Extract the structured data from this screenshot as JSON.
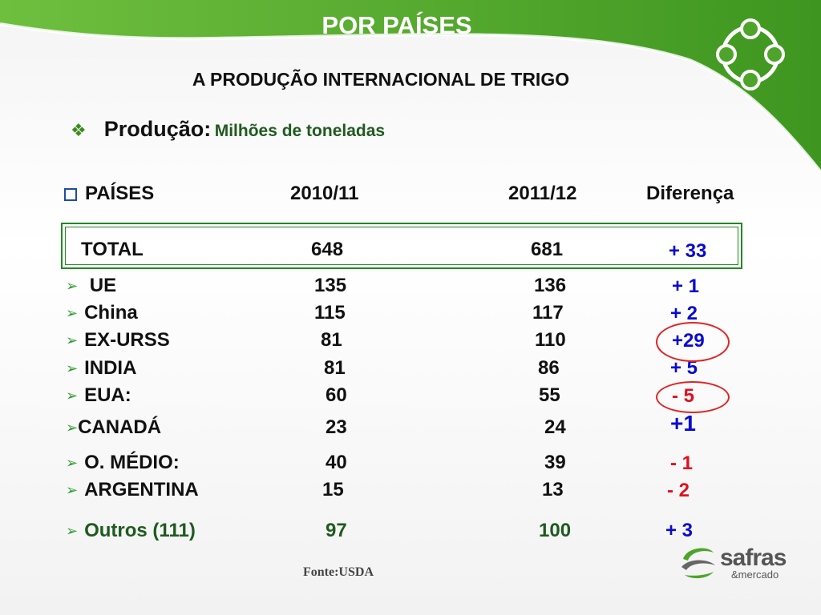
{
  "header": {
    "title": "POR PAÍSES",
    "subtitle": "A PRODUÇÃO INTERNACIONAL DE TRIGO"
  },
  "production": {
    "label": "Produção:",
    "unit": "Milhões de toneladas"
  },
  "table": {
    "columns": [
      "PAÍSES",
      "2010/11",
      "2011/12",
      "Diferença"
    ],
    "total": {
      "country": "TOTAL",
      "y2010": "648",
      "y2011": "681",
      "diff": "+ 33"
    },
    "rows": [
      {
        "country": "UE",
        "y2010": "135",
        "y2011": "136",
        "diff": "+ 1"
      },
      {
        "country": "China",
        "y2010": "115",
        "y2011": "117",
        "diff": "+ 2"
      },
      {
        "country": "EX-URSS",
        "y2010": "81",
        "y2011": "110",
        "diff": "+29"
      },
      {
        "country": "INDIA",
        "y2010": "81",
        "y2011": "86",
        "diff": "+ 5"
      },
      {
        "country": "EUA:",
        "y2010": "60",
        "y2011": "55",
        "diff": "- 5"
      },
      {
        "country": "CANADÁ",
        "y2010": "23",
        "y2011": "24",
        "diff": "+1"
      },
      {
        "country": "O. MÉDIO:",
        "y2010": "40",
        "y2011": "39",
        "diff": "- 1"
      },
      {
        "country": "ARGENTINA",
        "y2010": "15",
        "y2011": "13",
        "diff": "- 2"
      },
      {
        "country": "Outros (111)",
        "y2010": "97",
        "y2011": "100",
        "diff": "+ 3"
      }
    ]
  },
  "source": "Fonte:USDA",
  "logo": {
    "name": "safras",
    "sub": "&mercado"
  },
  "colors": {
    "brand_green": "#4ea42a",
    "positive": "#0a0ad0",
    "negative": "#e0101e",
    "highlight_circle": "#e02424"
  },
  "icons": [
    "diamond-bullet-icon",
    "square-bullet-icon",
    "arrow-bullet-icon",
    "safras-logo-icon",
    "ring-emblem-icon"
  ]
}
